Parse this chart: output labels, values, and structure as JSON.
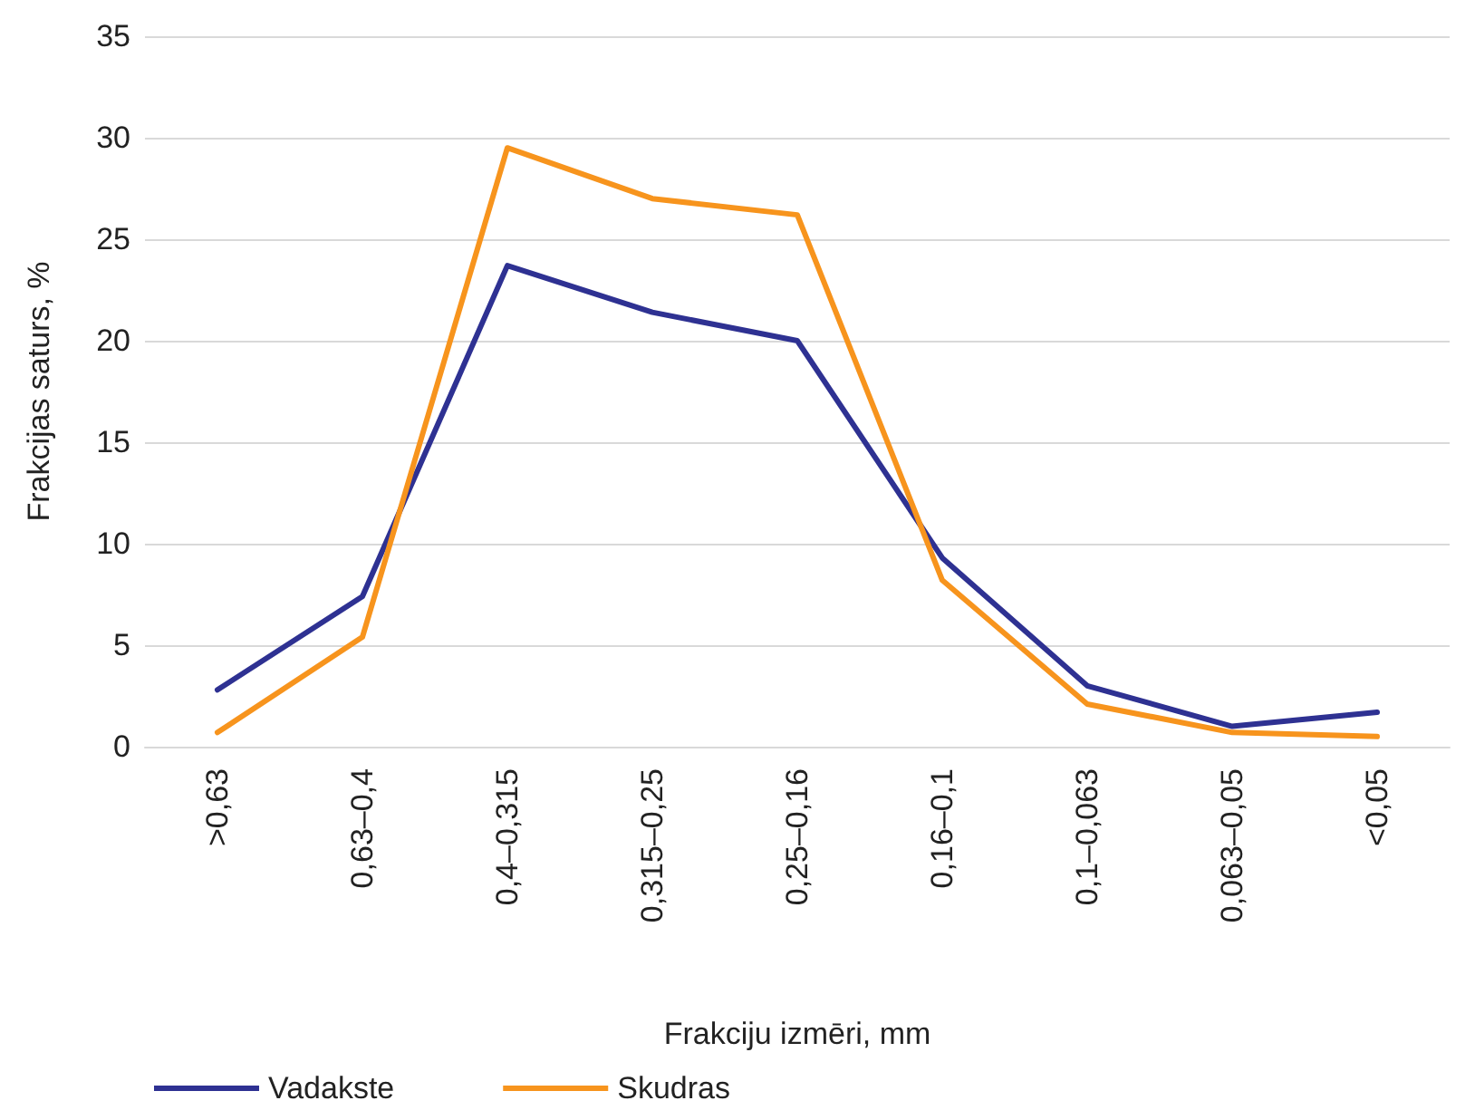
{
  "chart_data": {
    "type": "line",
    "xlabel": "Frakciju izmēri, mm",
    "ylabel": "Frakcijas saturs, %",
    "categories": [
      ">0,63",
      "0,63–0,4",
      "0,4–0,315",
      "0,315–0,25",
      "0,25–0,16",
      "0,16–0,1",
      "0,1–0,063",
      "0,063–0,05",
      "<0,05"
    ],
    "series": [
      {
        "name": "Vadakste",
        "color": "#2e3192",
        "values": [
          2.8,
          7.4,
          23.7,
          21.4,
          20.0,
          9.3,
          3.0,
          1.0,
          1.7
        ]
      },
      {
        "name": "Skudras",
        "color": "#f7941d",
        "values": [
          0.7,
          5.4,
          29.5,
          27.0,
          26.2,
          8.2,
          2.1,
          0.7,
          0.5
        ]
      }
    ],
    "ylim": [
      0,
      35
    ],
    "yticks": [
      0,
      5,
      10,
      15,
      20,
      25,
      30,
      35
    ],
    "grid": "y",
    "legend": "bottom left",
    "marker": "none",
    "line_style": "solid"
  }
}
